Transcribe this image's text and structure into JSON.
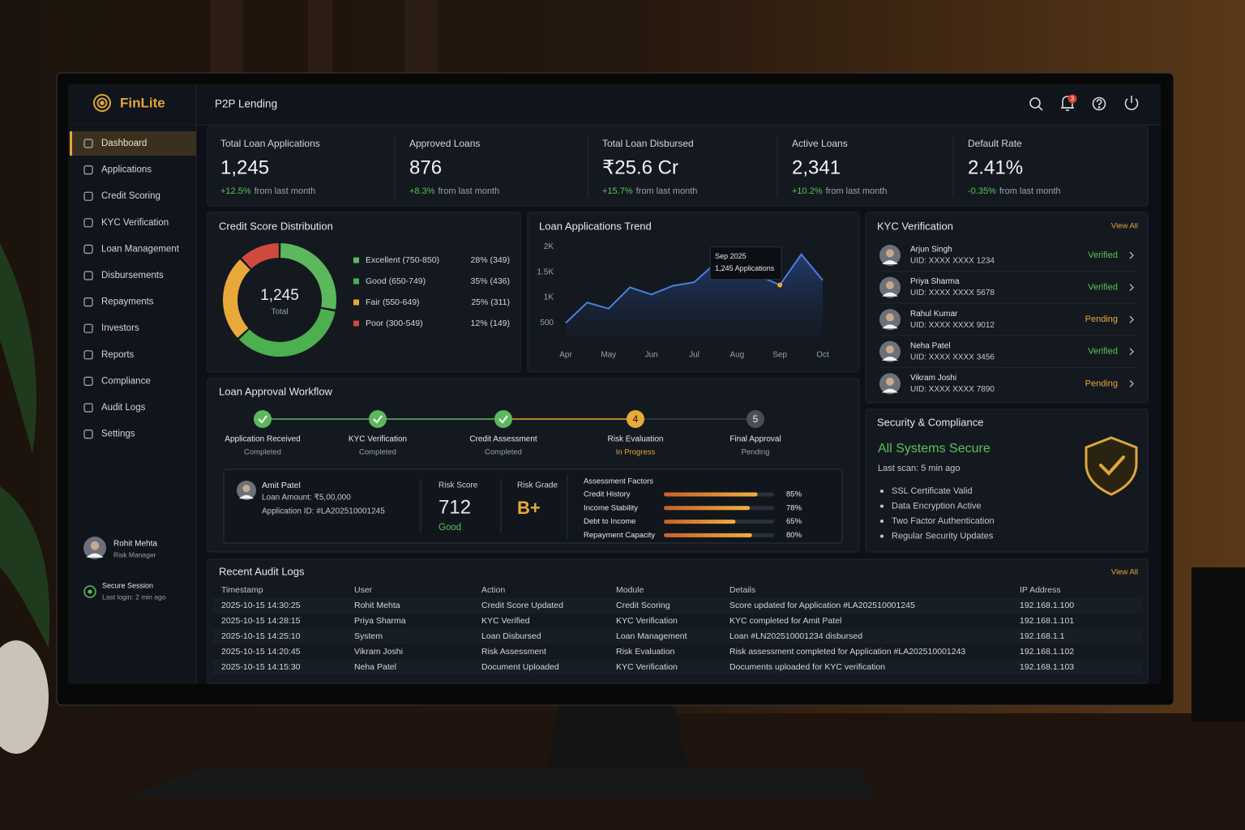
{
  "brand": "FinLite",
  "header": {
    "title": "P2P Lending",
    "notifications": 3
  },
  "nav": [
    "Dashboard",
    "Applications",
    "Credit Scoring",
    "KYC Verification",
    "Loan Management",
    "Disbursements",
    "Repayments",
    "Investors",
    "Reports",
    "Compliance",
    "Audit Logs",
    "Settings"
  ],
  "user": {
    "name": "Rohit Mehta",
    "role": "Risk Manager"
  },
  "session": {
    "title": "Secure Session",
    "detail": "Last login: 2 min ago"
  },
  "kpis": [
    {
      "label": "Total Loan Applications",
      "value": "1,245",
      "change": "+12.5%",
      "note": "from last month"
    },
    {
      "label": "Approved Loans",
      "value": "876",
      "change": "+8.3%",
      "note": "from last month"
    },
    {
      "label": "Total Loan Disbursed",
      "value": "₹25.6 Cr",
      "change": "+15.7%",
      "note": "from last month"
    },
    {
      "label": "Active Loans",
      "value": "2,341",
      "change": "+10.2%",
      "note": "from last month"
    },
    {
      "label": "Default Rate",
      "value": "2.41%",
      "change": "-0.35%",
      "note": "from last month"
    }
  ],
  "credit_distribution": {
    "type": "pie",
    "title": "Credit Score Distribution",
    "center_value": "1,245",
    "center_label": "Total",
    "categories": [
      "Excellent (750-850)",
      "Good (650-749)",
      "Fair (550-649)",
      "Poor (300-549)"
    ],
    "values": [
      28,
      35,
      25,
      12
    ],
    "value_labels": [
      "28% (349)",
      "35% (436)",
      "25% (311)",
      "12% (149)"
    ],
    "colors": [
      "#5cb85c",
      "#4caf50",
      "#e8a93a",
      "#d0493f"
    ]
  },
  "applications_trend": {
    "type": "line",
    "title": "Loan Applications Trend",
    "categories": [
      "Apr",
      null,
      "May",
      null,
      "Jun",
      null,
      "Jul",
      null,
      "Aug",
      null,
      "Sep",
      null,
      "Oct"
    ],
    "values": [
      500,
      900,
      780,
      1200,
      1060,
      1230,
      1300,
      1680,
      1480,
      1430,
      1245,
      1850,
      1340
    ],
    "color": "#4a7fe0",
    "ylim": [
      250,
      2150
    ],
    "yticks": [
      {
        "value": 500,
        "label": "500"
      },
      {
        "value": 1000,
        "label": "1K"
      },
      {
        "value": 1500,
        "label": "1.5K"
      },
      {
        "value": 2000,
        "label": "2K"
      }
    ],
    "tooltip": {
      "index": 10,
      "title": "Sep 2025",
      "text": "1,245 Applications",
      "color": "#e8a93a"
    }
  },
  "kyc": {
    "title": "KYC Verification",
    "view_all": "View All",
    "items": [
      {
        "name": "Arjun Singh",
        "uid": "UID: XXXX XXXX 1234",
        "status": "Verified",
        "color": "#5cc15a"
      },
      {
        "name": "Priya Sharma",
        "uid": "UID: XXXX XXXX 5678",
        "status": "Verified",
        "color": "#5cc15a"
      },
      {
        "name": "Rahul Kumar",
        "uid": "UID: XXXX XXXX 9012",
        "status": "Pending",
        "color": "#e8a93a"
      },
      {
        "name": "Neha Patel",
        "uid": "UID: XXXX XXXX 3456",
        "status": "Verified",
        "color": "#5cc15a"
      },
      {
        "name": "Vikram Joshi",
        "uid": "UID: XXXX XXXX 7890",
        "status": "Pending",
        "color": "#e8a93a"
      }
    ]
  },
  "workflow": {
    "title": "Loan Approval Workflow",
    "steps": [
      {
        "name": "Application Received",
        "status": "Completed",
        "color": "#5cb85c"
      },
      {
        "name": "KYC Verification",
        "status": "Completed",
        "color": "#5cb85c"
      },
      {
        "name": "Credit Assessment",
        "status": "Completed",
        "color": "#5cb85c"
      },
      {
        "name": "Risk Evaluation",
        "status": "In Progress",
        "number": 4,
        "color": "#e8a93a"
      },
      {
        "name": "Final Approval",
        "status": "Pending",
        "number": 5,
        "color": "#4a4f57"
      }
    ]
  },
  "application": {
    "name": "Amit Patel",
    "amount": "Loan Amount: ₹5,00,000",
    "id": "Application ID: #LA202510001245",
    "risk_score_label": "Risk Score",
    "risk_score": 712,
    "risk_rating": "Good",
    "risk_grade_label": "Risk Grade",
    "risk_grade": "B+",
    "factors_title": "Assessment Factors",
    "factors": [
      {
        "name": "Credit History",
        "value": 85,
        "value_label": "85%"
      },
      {
        "name": "Income Stability",
        "value": 78,
        "value_label": "78%"
      },
      {
        "name": "Debt to Income",
        "value": 65,
        "value_label": "65%"
      },
      {
        "name": "Repayment Capacity",
        "value": 80,
        "value_label": "80%"
      }
    ]
  },
  "security": {
    "title": "Security & Compliance",
    "status": "All Systems Secure",
    "last_scan": "Last scan: 5 min ago",
    "items": [
      "SSL Certificate Valid",
      "Data Encryption Active",
      "Two Factor Authentication",
      "Regular Security Updates"
    ]
  },
  "audit": {
    "title": "Recent Audit Logs",
    "view_all": "View All",
    "columns": [
      "Timestamp",
      "User",
      "Action",
      "Module",
      "Details",
      "IP Address"
    ],
    "rows": [
      [
        "2025-10-15 14:30:25",
        "Rohit Mehta",
        "Credit Score Updated",
        "Credit Scoring",
        "Score updated for Application #LA202510001245",
        "192.168.1.100"
      ],
      [
        "2025-10-15 14:28:15",
        "Priya Sharma",
        "KYC Verified",
        "KYC Verification",
        "KYC completed for Amit Patel",
        "192.168.1.101"
      ],
      [
        "2025-10-15 14:25:10",
        "System",
        "Loan Disbursed",
        "Loan Management",
        "Loan #LN202510001234 disbursed",
        "192.168.1.1"
      ],
      [
        "2025-10-15 14:20:45",
        "Vikram Joshi",
        "Risk Assessment",
        "Risk Evaluation",
        "Risk assessment completed for Application #LA202510001243",
        "192.168.1.102"
      ],
      [
        "2025-10-15 14:15:30",
        "Neha Patel",
        "Document Uploaded",
        "KYC Verification",
        "Documents uploaded for KYC verification",
        "192.168.1.103"
      ]
    ]
  }
}
